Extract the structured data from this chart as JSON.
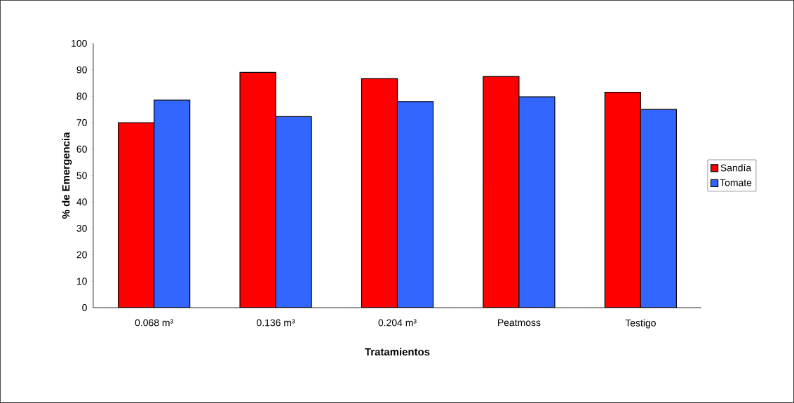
{
  "chart_data": {
    "type": "bar",
    "xlabel": "Tratamientos",
    "ylabel": "% de Emergencia",
    "categories": [
      "0.068 m³",
      "0.136 m³",
      "0.204 m³",
      "Peatmoss",
      "Testigo"
    ],
    "series": [
      {
        "name": "Sandía",
        "color": "#ff0000",
        "values": [
          70,
          89,
          86.7,
          87.5,
          81.5
        ]
      },
      {
        "name": "Tomate",
        "color": "#3366ff",
        "values": [
          78.5,
          72.3,
          78,
          79.8,
          75
        ]
      }
    ],
    "ylim": [
      0,
      100
    ],
    "yticks": [
      0,
      10,
      20,
      30,
      40,
      50,
      60,
      70,
      80,
      90,
      100
    ],
    "grid": false,
    "legend": "right"
  }
}
